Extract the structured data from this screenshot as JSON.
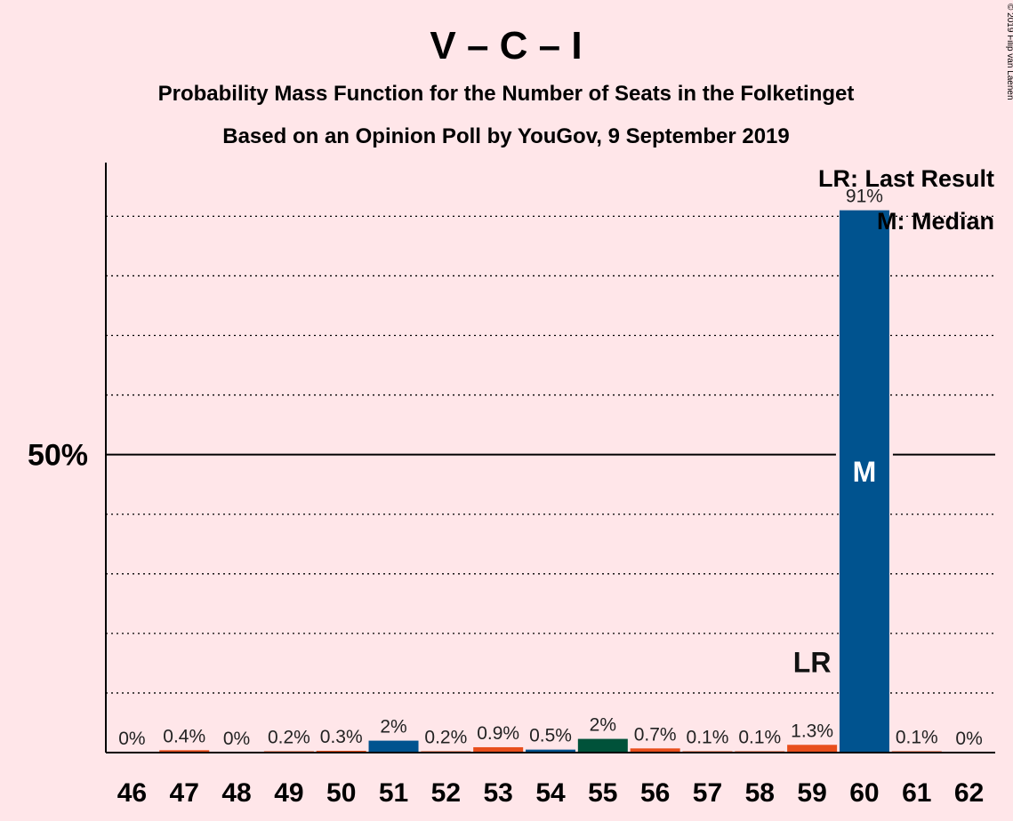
{
  "chart_data": {
    "type": "bar",
    "title": "V – C – I",
    "subtitle_1": "Probability Mass Function for the Number of Seats in the Folketinget",
    "subtitle_2": "Based on an Opinion Poll by YouGov, 9 September 2019",
    "copyright": "© 2019 Filip van Laenen",
    "categories": [
      "46",
      "47",
      "48",
      "49",
      "50",
      "51",
      "52",
      "53",
      "54",
      "55",
      "56",
      "57",
      "58",
      "59",
      "60",
      "61",
      "62"
    ],
    "values": [
      0,
      0.4,
      0,
      0.2,
      0.3,
      2,
      0.2,
      0.9,
      0.5,
      2.3,
      0.7,
      0.1,
      0.1,
      1.3,
      91,
      0.1,
      0
    ],
    "value_labels": [
      "0%",
      "0.4%",
      "0%",
      "0.2%",
      "0.3%",
      "2%",
      "0.2%",
      "0.9%",
      "0.5%",
      "2%",
      "0.7%",
      "0.1%",
      "0.1%",
      "1.3%",
      "91%",
      "0.1%",
      "0%"
    ],
    "bar_colors": [
      "#E84E1C",
      "#E84E1C",
      "#E84E1C",
      "#E84E1C",
      "#E84E1C",
      "#00538F",
      "#E84E1C",
      "#E84E1C",
      "#00538F",
      "#00523A",
      "#E84E1C",
      "#E84E1C",
      "#E84E1C",
      "#E84E1C",
      "#00538F",
      "#E84E1C",
      "#E84E1C"
    ],
    "ylim": [
      0,
      99
    ],
    "gridlines": [
      10,
      20,
      30,
      40,
      60,
      70,
      80,
      90
    ],
    "reference_line": 50,
    "ytick_label": "50%",
    "last_result_seat": "59",
    "last_result_mark": "LR",
    "median_seat": "60",
    "median_mark": "M",
    "legend": [
      "LR: Last Result",
      "M: Median"
    ],
    "legend_position": "top-right"
  }
}
